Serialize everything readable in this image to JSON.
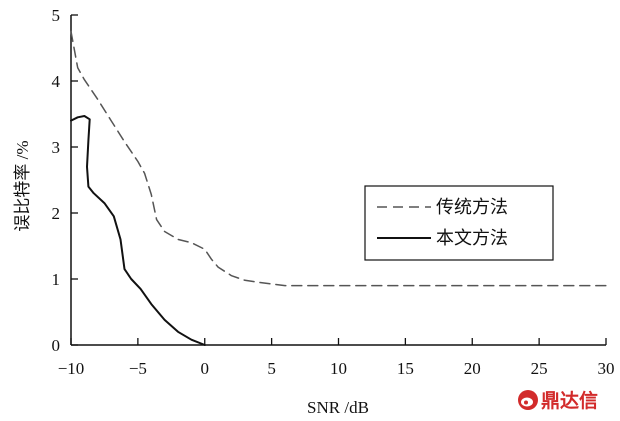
{
  "chart_data": {
    "type": "line",
    "xlabel": "SNR /dB",
    "ylabel": "误比特率 /%",
    "xlim": [
      -10,
      30
    ],
    "ylim": [
      0,
      5
    ],
    "x_ticks": [
      "−10",
      "−5",
      "0",
      "5",
      "10",
      "15",
      "20",
      "25",
      "30"
    ],
    "y_ticks": [
      "0",
      "1",
      "2",
      "3",
      "4",
      "5"
    ],
    "grid": false,
    "legend_position": "center-right",
    "series": [
      {
        "name": "传统方法",
        "style": "dashed",
        "color": "#555555",
        "points": [
          [
            -10,
            4.75
          ],
          [
            -9.5,
            4.2
          ],
          [
            -9,
            4.02
          ],
          [
            -8,
            3.72
          ],
          [
            -7,
            3.4
          ],
          [
            -6,
            3.08
          ],
          [
            -5,
            2.78
          ],
          [
            -4.5,
            2.6
          ],
          [
            -4,
            2.28
          ],
          [
            -3.6,
            1.9
          ],
          [
            -3,
            1.72
          ],
          [
            -2,
            1.6
          ],
          [
            -1,
            1.55
          ],
          [
            0,
            1.45
          ],
          [
            0.5,
            1.3
          ],
          [
            1,
            1.18
          ],
          [
            2,
            1.05
          ],
          [
            3,
            0.98
          ],
          [
            4,
            0.95
          ],
          [
            6,
            0.9
          ],
          [
            10,
            0.9
          ],
          [
            20,
            0.9
          ],
          [
            30,
            0.9
          ]
        ]
      },
      {
        "name": "本文方法",
        "style": "solid",
        "color": "#111111",
        "points": [
          [
            -10,
            3.4
          ],
          [
            -9.5,
            3.45
          ],
          [
            -9,
            3.47
          ],
          [
            -8.6,
            3.42
          ],
          [
            -8.7,
            3.1
          ],
          [
            -8.8,
            2.7
          ],
          [
            -8.7,
            2.4
          ],
          [
            -8.3,
            2.3
          ],
          [
            -7.5,
            2.15
          ],
          [
            -6.8,
            1.95
          ],
          [
            -6.3,
            1.6
          ],
          [
            -6,
            1.15
          ],
          [
            -5.5,
            1.0
          ],
          [
            -4.8,
            0.85
          ],
          [
            -4,
            0.62
          ],
          [
            -3,
            0.38
          ],
          [
            -2,
            0.2
          ],
          [
            -1,
            0.08
          ],
          [
            0,
            0.0
          ]
        ]
      }
    ]
  },
  "watermark": {
    "icon": "weibo-like-logo",
    "text": "鼎达信"
  }
}
